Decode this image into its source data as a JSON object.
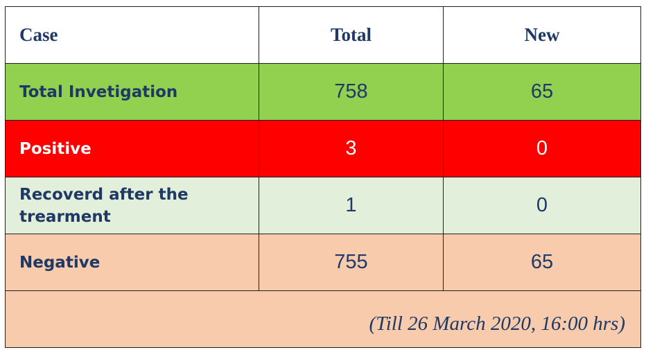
{
  "table": {
    "headers": {
      "case": "Case",
      "total": "Total",
      "new": "New"
    },
    "rows": [
      {
        "label": "Total Invetigation",
        "total": "758",
        "new": "65",
        "color": "#92d050"
      },
      {
        "label": "Positive",
        "total": "3",
        "new": "0",
        "color": "#ff0000"
      },
      {
        "label": "Recoverd after the trearment",
        "total": "1",
        "new": "0",
        "color": "#e2efda"
      },
      {
        "label": "Negative",
        "total": "755",
        "new": "65",
        "color": "#f8cbad"
      }
    ],
    "footer_note": "(Till 26 March 2020, 16:00 hrs)",
    "colors": {
      "header_text": "#1f3864",
      "positive_text": "#ffffff",
      "footer_bg": "#f8cbad"
    }
  }
}
